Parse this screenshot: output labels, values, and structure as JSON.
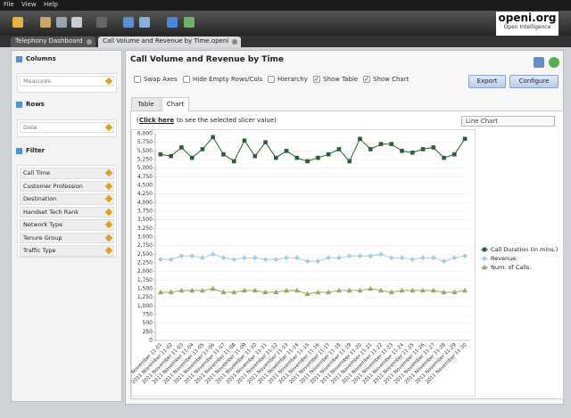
{
  "menu": [
    "File",
    "View",
    "Help"
  ],
  "logo": {
    "title": "openi.org",
    "subtitle": "Open Intelligence"
  },
  "tabs": [
    "Telephony Dashboard",
    "Call Volume and Revenue by Time.openi"
  ],
  "sidebar": {
    "columns": {
      "title": "Columns",
      "items": [
        "Measures"
      ]
    },
    "rows": {
      "title": "Rows",
      "items": [
        "Date"
      ]
    },
    "filter": {
      "title": "Filter",
      "items": [
        "Call Time",
        "Customer Profession",
        "Destination",
        "Handset Tech Rank",
        "Network Type",
        "Tenure Group",
        "Traffic Type"
      ]
    }
  },
  "report": {
    "title": "Call Volume and Revenue by Time",
    "options": [
      {
        "label": "Swap Axes",
        "checked": false
      },
      {
        "label": "Hide Empty Rows/Cols",
        "checked": false
      },
      {
        "label": "Hierarchy",
        "checked": false
      },
      {
        "label": "Show Table",
        "checked": true
      },
      {
        "label": "Show Chart",
        "checked": true
      }
    ],
    "buttons": [
      "Export",
      "Configure"
    ],
    "view_tabs": [
      "Table",
      "Chart"
    ],
    "slicer_prefix": "(",
    "slicer_link": "Click here",
    "slicer_suffix": "to see the selected slicer value)",
    "chart_type": "Line Chart"
  },
  "chart_data": {
    "type": "line",
    "categories": [
      "2011 November 11-01",
      "2011 November 11-02",
      "2011 November 11-03",
      "2011 November 11-04",
      "2011 November 11-05",
      "2011 November 11-06",
      "2011 November 11-07",
      "2011 November 11-08",
      "2011 November 11-09",
      "2011 November 11-10",
      "2011 November 11-11",
      "2011 November 11-12",
      "2011 November 11-13",
      "2011 November 11-14",
      "2011 November 11-15",
      "2011 November 11-16",
      "2011 November 11-17",
      "2011 November 11-18",
      "2011 November 11-19",
      "2011 November 11-20",
      "2011 November 11-21",
      "2011 November 11-22",
      "2011 November 11-23",
      "2011 November 11-24",
      "2011 November 11-25",
      "2011 November 11-26",
      "2011 November 11-27",
      "2011 November 11-28",
      "2011 November 11-29",
      "2011 November 11-30"
    ],
    "series": [
      {
        "name": "Call Duration (in mins.)",
        "color": "#2f5e36",
        "marker": "square",
        "values": [
          5400,
          5350,
          5600,
          5300,
          5550,
          5900,
          5400,
          5200,
          5800,
          5350,
          5750,
          5300,
          5500,
          5300,
          5200,
          5300,
          5400,
          5550,
          5200,
          5850,
          5550,
          5700,
          5700,
          5500,
          5450,
          5550,
          5600,
          5300,
          5400,
          5850
        ]
      },
      {
        "name": "Revenue.",
        "color": "#a8cde2",
        "marker": "diamond",
        "values": [
          2350,
          2350,
          2450,
          2450,
          2400,
          2500,
          2400,
          2350,
          2400,
          2400,
          2350,
          2350,
          2400,
          2400,
          2300,
          2300,
          2400,
          2400,
          2450,
          2450,
          2450,
          2500,
          2400,
          2400,
          2350,
          2400,
          2400,
          2300,
          2400,
          2450
        ]
      },
      {
        "name": "Num. of Calls.",
        "color": "#9aa95a",
        "marker": "triangle",
        "values": [
          1400,
          1400,
          1450,
          1450,
          1450,
          1500,
          1400,
          1400,
          1450,
          1450,
          1400,
          1400,
          1450,
          1450,
          1350,
          1400,
          1400,
          1450,
          1450,
          1450,
          1500,
          1450,
          1400,
          1450,
          1450,
          1450,
          1450,
          1400,
          1400,
          1450
        ]
      }
    ],
    "ylim": [
      0,
      6000
    ],
    "yticks": [
      0,
      250,
      500,
      750,
      {
        "value": 1000,
        "label": "1,000"
      },
      {
        "value": 1250,
        "label": "1,250"
      },
      {
        "value": 1500,
        "label": "1,500"
      },
      {
        "value": 1750,
        "label": "1,750"
      },
      {
        "value": 2000,
        "label": "2,000"
      },
      {
        "value": 2250,
        "label": "2,250"
      },
      {
        "value": 2500,
        "label": "2,500"
      },
      {
        "value": 2750,
        "label": "2,750"
      },
      {
        "value": 3000,
        "label": "3,000"
      },
      {
        "value": 3250,
        "label": "3,250"
      },
      {
        "value": 3500,
        "label": "3,500"
      },
      {
        "value": 3750,
        "label": "3,750"
      },
      {
        "value": 4000,
        "label": "4,000"
      },
      {
        "value": 4250,
        "label": "4,250"
      },
      {
        "value": 4500,
        "label": "4,500"
      },
      {
        "value": 4750,
        "label": "4,750"
      },
      {
        "value": 5000,
        "label": "5,000"
      },
      {
        "value": 5250,
        "label": "5,250"
      },
      {
        "value": 5500,
        "label": "5,500"
      },
      {
        "value": 5750,
        "label": "5,750"
      },
      {
        "value": 6000,
        "label": "6,000"
      }
    ],
    "grid": true,
    "legend": "right"
  }
}
